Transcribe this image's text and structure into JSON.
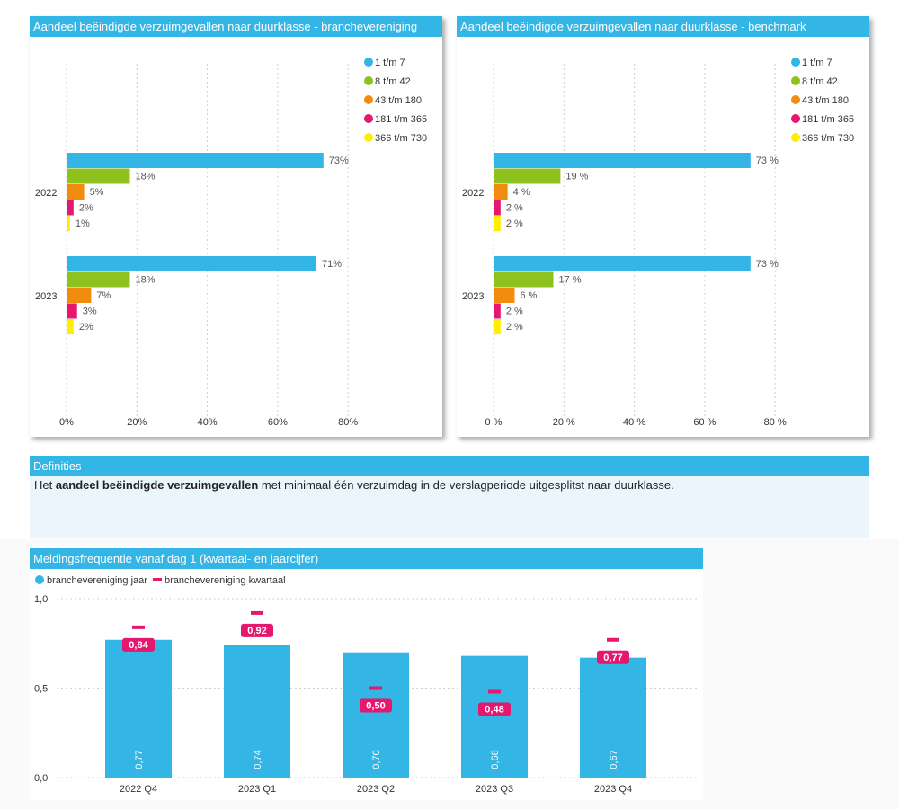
{
  "colors": {
    "header": "#33b5e5",
    "series": [
      "#33b5e5",
      "#8dc21f",
      "#f28c0f",
      "#e5176f",
      "#ffee00"
    ],
    "quarter_marker": "#e5176f"
  },
  "legend_labels": [
    "1 t/m 7",
    "8 t/m 42",
    "43 t/m 180",
    "181 t/m 365",
    "366 t/m 730"
  ],
  "definitions": {
    "title": "Definities",
    "text_prefix": "Het ",
    "text_bold": "aandeel beëindigde verzuimgevallen",
    "text_suffix": " met minimaal één verzuimdag in de verslagperiode uitgesplitst naar duurklasse."
  },
  "chart_data": [
    {
      "type": "bar",
      "orientation": "horizontal",
      "title": "Aandeel beëindigde verzuimgevallen naar duurklasse - branchevereniging",
      "categories": [
        "2022",
        "2023"
      ],
      "series": [
        {
          "name": "1 t/m 7",
          "values": [
            73,
            71
          ],
          "labels": [
            "73%",
            "71%"
          ]
        },
        {
          "name": "8 t/m 42",
          "values": [
            18,
            18
          ],
          "labels": [
            "18%",
            "18%"
          ]
        },
        {
          "name": "43 t/m 180",
          "values": [
            5,
            7
          ],
          "labels": [
            "5%",
            "7%"
          ]
        },
        {
          "name": "181 t/m 365",
          "values": [
            2,
            3
          ],
          "labels": [
            "2%",
            "3%"
          ]
        },
        {
          "name": "366 t/m 730",
          "values": [
            1,
            2
          ],
          "labels": [
            "1%",
            "2%"
          ]
        }
      ],
      "xticks": [
        "0%",
        "20%",
        "40%",
        "60%",
        "80%"
      ],
      "xlim": [
        0,
        80
      ],
      "grid": true,
      "legend": "top-right"
    },
    {
      "type": "bar",
      "orientation": "horizontal",
      "title": "Aandeel beëindigde verzuimgevallen naar duurklasse - benchmark",
      "categories": [
        "2022",
        "2023"
      ],
      "series": [
        {
          "name": "1 t/m 7",
          "values": [
            73,
            73
          ],
          "labels": [
            "73 %",
            "73 %"
          ]
        },
        {
          "name": "8 t/m 42",
          "values": [
            19,
            17
          ],
          "labels": [
            "19 %",
            "17 %"
          ]
        },
        {
          "name": "43 t/m 180",
          "values": [
            4,
            6
          ],
          "labels": [
            "4 %",
            "6 %"
          ]
        },
        {
          "name": "181 t/m 365",
          "values": [
            2,
            2
          ],
          "labels": [
            "2 %",
            "2 %"
          ]
        },
        {
          "name": "366 t/m 730",
          "values": [
            2,
            2
          ],
          "labels": [
            "2 %",
            "2 %"
          ]
        }
      ],
      "xticks": [
        "0 %",
        "20 %",
        "40 %",
        "60 %",
        "80 %"
      ],
      "xlim": [
        0,
        80
      ],
      "grid": true,
      "legend": "top-right"
    },
    {
      "type": "bar",
      "title": "Meldingsfrequentie vanaf dag 1 (kwartaal- en jaarcijfer)",
      "categories": [
        "2022 Q4",
        "2023 Q1",
        "2023 Q2",
        "2023 Q3",
        "2023 Q4"
      ],
      "series": [
        {
          "name": "branchevereniging jaar",
          "values": [
            0.77,
            0.74,
            0.7,
            0.68,
            0.67
          ],
          "labels": [
            "0,77",
            "0,74",
            "0,70",
            "0,68",
            "0,67"
          ]
        },
        {
          "name": "branchevereniging kwartaal",
          "values": [
            0.84,
            0.92,
            0.5,
            0.48,
            0.77
          ],
          "labels": [
            "0,84",
            "0,92",
            "0,50",
            "0,48",
            "0,77"
          ]
        }
      ],
      "yticks": [
        "0,0",
        "0,5",
        "1,0"
      ],
      "ylim": [
        0,
        1.0
      ],
      "grid": true,
      "legend": "top-left"
    }
  ]
}
